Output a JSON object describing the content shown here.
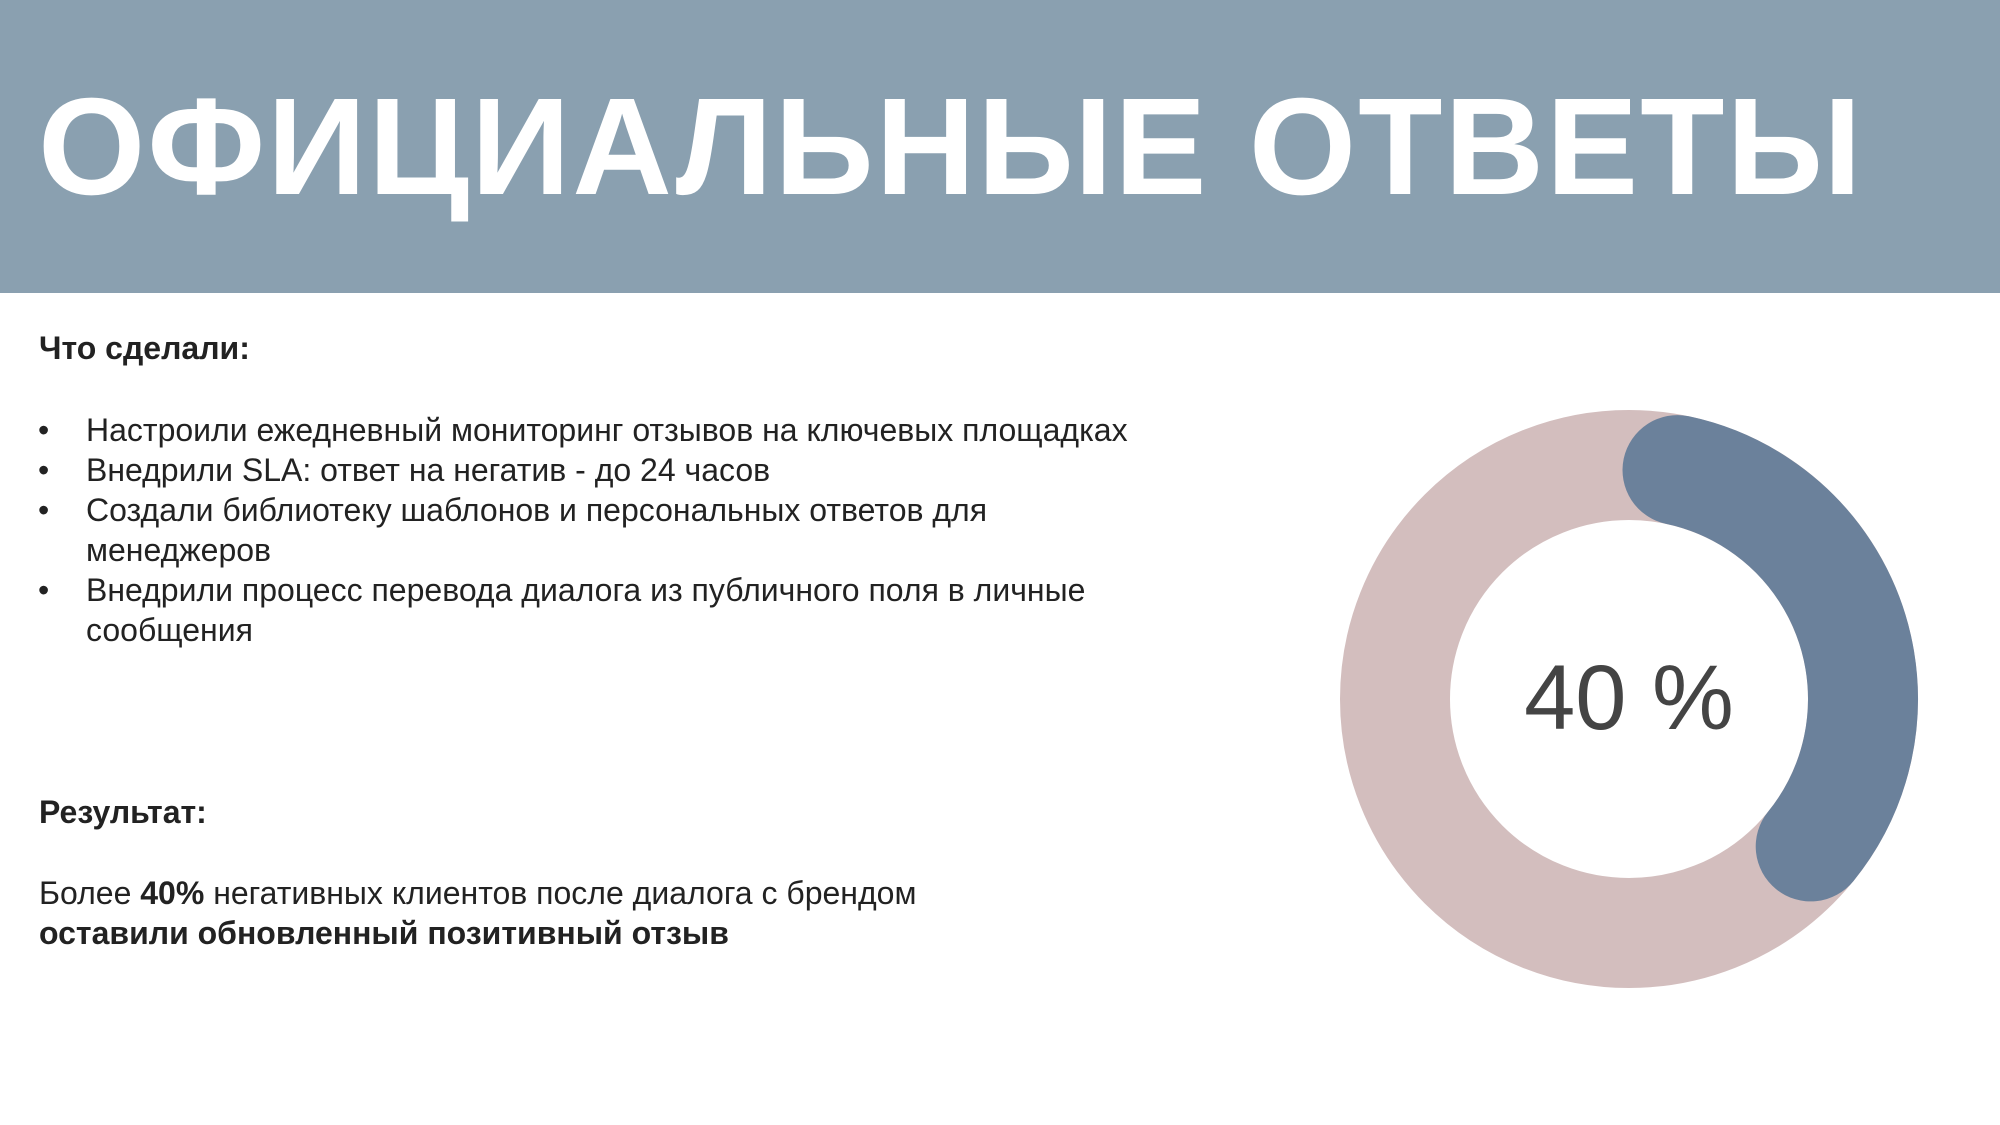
{
  "header": {
    "title": "ОФИЦИАЛЬНЫЕ ОТВЕТЫ",
    "color": "#8aa0b0"
  },
  "done": {
    "heading": "Что сделали:",
    "items": [
      "Настроили ежедневный мониторинг отзывов на ключевых площадках",
      "Внедрили SLA: ответ на негатив - до 24 часов",
      "Создали библиотеку шаблонов и персональных ответов для менеджеров",
      "Внедрили процесс перевода диалога из публичного поля в личные сообщения"
    ]
  },
  "result": {
    "heading": "Результат:",
    "prefix": "Более ",
    "bold_value": "40%",
    "middle": " негативных клиентов после диалога с брендом",
    "bold_tail": "оставили обновленный позитивный отзыв"
  },
  "chart_data": {
    "type": "pie",
    "variant": "donut",
    "values": [
      40,
      60
    ],
    "center_label": "40 %",
    "colors": [
      "#6b819b",
      "#d3bebe"
    ]
  }
}
